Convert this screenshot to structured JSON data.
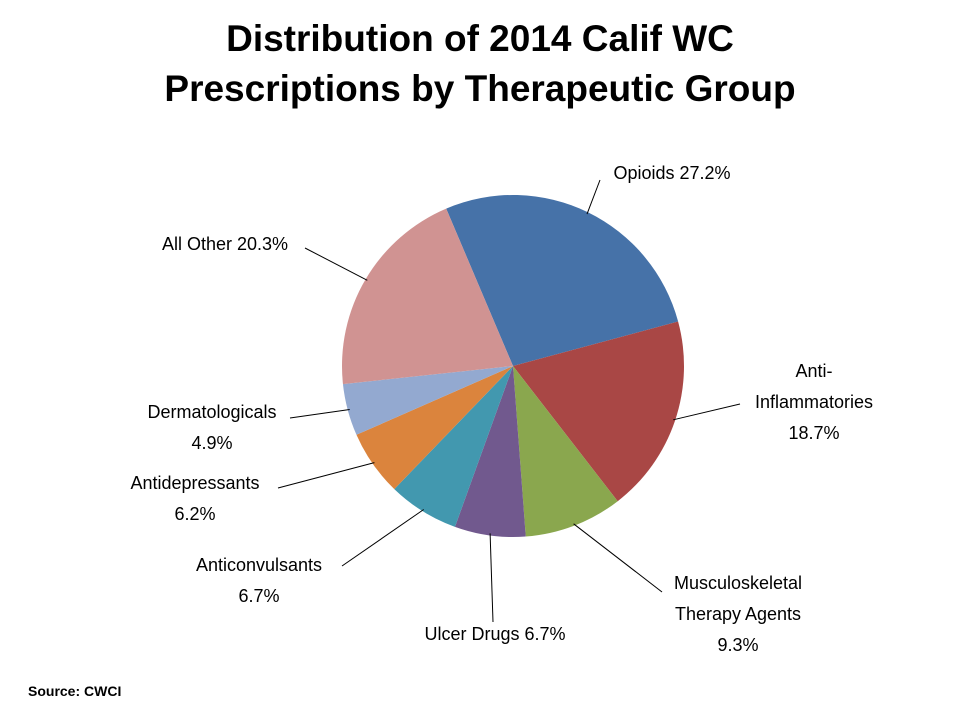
{
  "chart_data": {
    "type": "pie",
    "title_lines": [
      "Distribution of 2014 Calif WC",
      "Prescriptions by Therapeutic Group"
    ],
    "start_angle_deg": -23,
    "direction": "clockwise",
    "unit": "%",
    "slices": [
      {
        "name": "Opioids",
        "value": 27.2,
        "label_lines": [
          "Opioids 27.2%"
        ],
        "color": "#4672A8"
      },
      {
        "name": "Anti-Inflammatories",
        "value": 18.7,
        "label_lines": [
          "Anti-",
          "Inflammatories",
          "18.7%"
        ],
        "color": "#A94745"
      },
      {
        "name": "Musculoskeletal Therapy Agents",
        "value": 9.3,
        "label_lines": [
          "Musculoskeletal",
          "Therapy Agents",
          "9.3%"
        ],
        "color": "#8AA74E"
      },
      {
        "name": "Ulcer Drugs",
        "value": 6.7,
        "label_lines": [
          "Ulcer Drugs 6.7%"
        ],
        "color": "#71598E"
      },
      {
        "name": "Anticonvulsants",
        "value": 6.7,
        "label_lines": [
          "Anticonvulsants",
          "6.7%"
        ],
        "color": "#4298AF"
      },
      {
        "name": "Antidepressants",
        "value": 6.2,
        "label_lines": [
          "Antidepressants",
          "6.2%"
        ],
        "color": "#DB843D"
      },
      {
        "name": "Dermatologicals",
        "value": 4.9,
        "label_lines": [
          "Dermatologicals",
          "4.9%"
        ],
        "color": "#93A9D0"
      },
      {
        "name": "All Other",
        "value": 20.3,
        "label_lines": [
          "All Other 20.3%"
        ],
        "color": "#D09392"
      }
    ],
    "legend": "none",
    "data_labels": "outside-with-leader-lines"
  },
  "source": "Source: CWCI"
}
